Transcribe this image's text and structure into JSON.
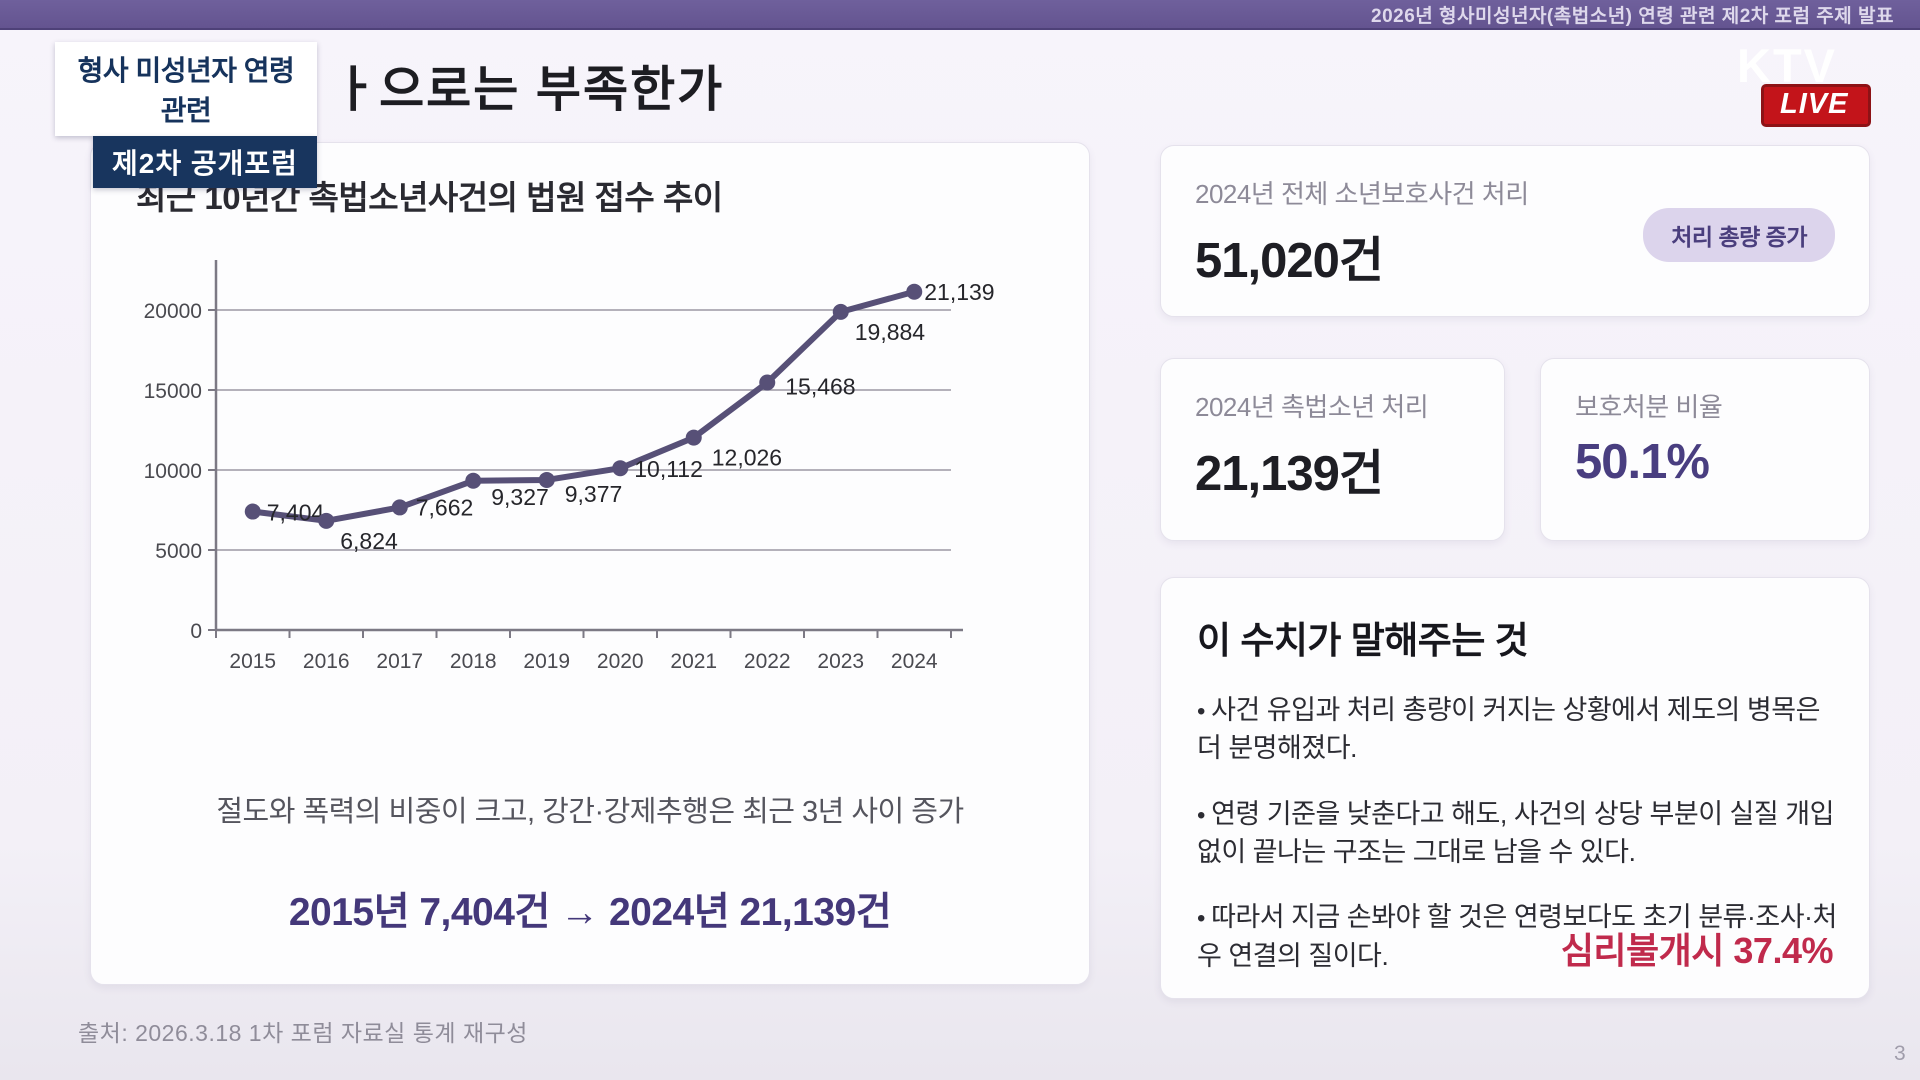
{
  "broadcast": {
    "ticker": "2026년 형사미성년자(촉법소년) 연령 관련 제2차 포럼 주제 발표",
    "channel": "KTV",
    "live_label": "LIVE"
  },
  "header": {
    "badge_line1": "형사 미성년자 연령 관련",
    "badge_line2": "제2차 공개포럼",
    "title_visible": "ㅏ으로는 부족한가"
  },
  "chart_card": {
    "title": "최근 10년간 촉법소년사건의 법원 접수 추이",
    "caption": "절도와 폭력의 비중이 크고, 강간·강제추행은 최근 3년 사이 증가",
    "highlight": "2015년 7,404건 → 2024년 21,139건"
  },
  "chart_data": {
    "type": "line",
    "title": "최근 10년간 촉법소년사건의 법원 접수 추이",
    "x": [
      "2015",
      "2016",
      "2017",
      "2018",
      "2019",
      "2020",
      "2021",
      "2022",
      "2023",
      "2024"
    ],
    "values": [
      7404,
      6824,
      7662,
      9327,
      9377,
      10112,
      12026,
      15468,
      19884,
      21139
    ],
    "point_labels": [
      "7,404",
      "6,824",
      "7,662",
      "9,327",
      "9,377",
      "10,112",
      "12,026",
      "15,468",
      "19,884",
      "21,139"
    ],
    "xlabel": "",
    "ylabel": "",
    "ylim": [
      0,
      22500
    ],
    "yticks": [
      0,
      5000,
      10000,
      15000,
      20000
    ],
    "grid": true,
    "legend": false,
    "line_color": "#575077"
  },
  "stats": {
    "total": {
      "label": "2024년 전체 소년보호사건 처리",
      "value": "51,020건",
      "badge": "처리 총량 증가"
    },
    "chokbeop": {
      "label": "2024년 촉법소년 처리",
      "value": "21,139건"
    },
    "ratio": {
      "label": "보호처분 비율",
      "value": "50.1%"
    }
  },
  "insights": {
    "title": "이 수치가 말해주는 것",
    "bullets": [
      "사건 유입과 처리 총량이 커지는 상황에서 제도의 병목은 더 분명해졌다.",
      "연령 기준을 낮춘다고 해도, 사건의 상당 부분이 실질 개입 없이 끝나는 구조는 그대로 남을 수 있다.",
      "따라서 지금 손봐야 할 것은 연령보다도 초기 분류·조사·처우 연결의 질이다."
    ],
    "highlight": "심리불개시 37.4%"
  },
  "footer": {
    "source": "출처: 2026.3.18 1차 포럼 자료실 통계 재구성",
    "page": "3"
  },
  "colors": {
    "topbar_purple": "#645490",
    "badge_navy": "#18355e",
    "chart_line": "#575077",
    "highlight_purple": "#44387a",
    "insight_red": "#c02a4c",
    "live_red": "#c3141a",
    "pill_bg": "#dcd4ec"
  }
}
